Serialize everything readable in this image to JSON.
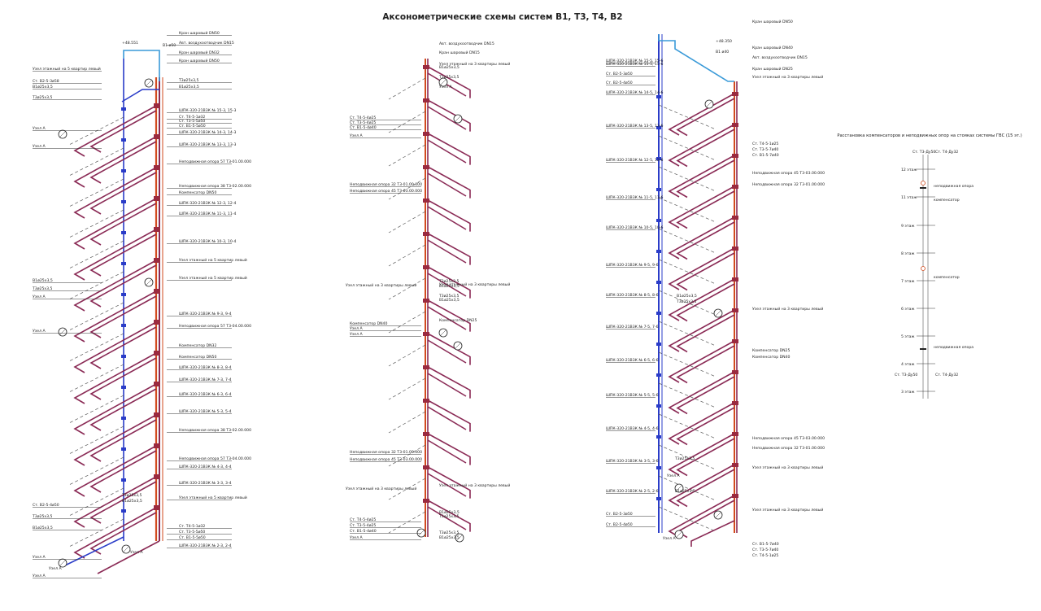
{
  "title": "Аксонометрические схемы систем В1, Т3, Т4, В2",
  "diagram1": {
    "level_mark": "+48.551",
    "labels": [
      "Кран шаровый DN50",
      "Авт. воздухоотводчик DN15",
      "Кран шаровый DN32",
      "В1 ø50",
      "Кран шаровый DN50",
      "Узел этажный на 5 квартир левый",
      "Ст. В2-5-3ø58",
      "В1ø25х3,5",
      "Т3ø25х3,5",
      "Т3ø25х3,5",
      "В1ø25х3,5",
      "Узел А",
      "Узел А",
      "ШПК-320-21В3К № 15-3, 15-3",
      "Ст. Т4-5-1ø32",
      "Ст. Т3-5-5ø50",
      "Ст. В1-5-5ø50",
      "ШПК-320-21В3К № 14-3, 14-3",
      "ШПК-320-21В3К № 13-3, 13-3",
      "Неподвижная опора 57 Т3-01.00.000",
      "Неподвижная опора 38 Т3-02.00.000",
      "Компенсатор DN50",
      "ШПК-320-21В3К № 12-3, 12-4",
      "ШПК-320-21В3К № 11-3, 11-4",
      "ШПК-320-21В3К № 10-3, 10-4",
      "Узел этажный на 5 квартир левый",
      "В1ø25х3,5",
      "Т3ø25х3,5",
      "Т3ø25х3,5",
      "В1ø25х3,5",
      "Узел А",
      "ШПК-320-21В3К № 9-3, 9-4",
      "Неподвижная опора 57 Т3-04.00.000",
      "Компенсатор DN32",
      "Компенсатор DN50",
      "ШПК-320-21В3К № 8-3, 8-4",
      "ШПК-320-21В3К № 7-3, 7-4",
      "ШПК-320-21В3К № 6-3, 6-4",
      "ШПК-320-21В3К № 5-3, 5-4",
      "Неподвижная опора 38 Т3-02.00.000",
      "Неподвижная опора 57 Т3-04.00.000",
      "ШПК-320-21В3К № 4-3, 4-4",
      "ШПК-320-21В3К № 3-3, 3-4",
      "Узел этажный на 5 квартир левый",
      "Ст. В2-5-4ø50",
      "Т3ø25х3,5",
      "В1ø25х3,5",
      "Т3ø25х3,5",
      "В1ø25х3,5",
      "Ст. Т4-5-1ø32",
      "Ст. Т3-5-5ø50",
      "Ст. В1-5-5ø50",
      "ШПК-320-21В3К № 2-3, 2-4",
      "Узел А",
      "Узел А"
    ]
  },
  "diagram2": {
    "labels": [
      "Авт. воздухоотводчик DN15",
      "Кран шаровый DN15",
      "Узел этажный на 3 квартиры левый",
      "В1ø25х3,5",
      "Т3ø25х3,5",
      "Узел А",
      "Ст. Т3-5-4ø25",
      "Ст. Т4-5-4ø25",
      "Ст. В1-5-4ø40",
      "Узел А",
      "Неподвижная опора 32 Т3-01.00.000",
      "Неподвижная опора 45 Т3-03.00.000",
      "Узел этажный на 3 квартиры левый",
      "Т3ø25х3,5",
      "В1ø25х3,5",
      "Т3ø25х3,5",
      "В1ø25х3,5",
      "Компенсатор DN25",
      "Компенсатор DN40",
      "Узел А",
      "Узел А",
      "Неподвижная опора 32 Т3-01.00.000",
      "Неподвижная опора 45 Т3-03.00.000",
      "Узел этажный на 3 квартиры левый",
      "Ст. Т4-5-4ø25",
      "Ст. Т3-5-4ø25",
      "Ст. В1-5-4ø40",
      "В1ø25х3,5",
      "Т3ø25х3,5",
      "Т3ø25х3,5",
      "В1ø25х3,5",
      "Узел А",
      "Узел А"
    ]
  },
  "diagram3": {
    "level_mark": "+48.350",
    "labels": [
      "Кран шаровый DN50",
      "Кран шаровый DN40",
      "Авт. воздухоотводчик DN15",
      "В1 ø40",
      "Кран шаровый DN25",
      "Узел этажный на 3 квартиры левый",
      "ШПК-320-21В3К № 15-5, 15-6",
      "В1ø25х3,5",
      "Т3ø25х3,5",
      "Ст. В2-5-3ø50",
      "Ст. В2-5-4ø50",
      "ШПК-320-21В3К № 14-5, 14-6",
      "Узел А",
      "ШПК-320-21В3К № 13-5, 13-6",
      "Ст. Т4-5-1ø25",
      "Ст. Т3-5-7ø40",
      "Ст. В1-5-7ø40",
      "ШПК-320-21В3К № 12-5, 12-6",
      "Неподвижная опора 45 Т3-03.00.000",
      "Неподвижная опора 32 Т3-01.00.000",
      "ШПК-320-21В3К № 11-5, 11-6",
      "ШПК-320-21В3К № 10-5, 10-6",
      "ШПК-320-21В3К № 9-5, 9-6",
      "ШПК-320-21В3К № 8-5, 8-6",
      "Т3ø25х3,5",
      "В1ø25х3,5",
      "Узел этажный на 3 квартиры левый",
      "Узел А",
      "ШПК-320-21В3К № 7-5, 7-6",
      "Компенсатор DN25",
      "Компенсатор DN40",
      "ШПК-320-21В3К № 6-5, 6-6",
      "ШПК-320-21В3К № 5-5, 5-6",
      "ШПК-320-21В3К № 4-5, 4-6",
      "Неподвижная опора 45 Т3-03.00.000",
      "Неподвижная опора 32 Т3-01.00.000",
      "ШПК-320-21В3К № 3-5, 3-6",
      "Узел этажный на 3 квартиры левый",
      "Т3ø25х3,5",
      "В1ø25х3,5",
      "Т3ø25х3,5",
      "В1ø25х3,5",
      "Узел А",
      "ШПК-320-21В3К № 2-5, 2-6",
      "Ст. В2-5-3ø50",
      "Ст. В2-5-4ø50",
      "Узел этажный на 3 квартиры левый",
      "Узел А",
      "Ст. В1-5-7ø40",
      "Ст. Т3-5-7ø40",
      "Ст. Т4-5-1ø25"
    ]
  },
  "legend_panel": {
    "title": "Расстановка компенсаторов и неподвижных опор на стояках системы ГВС (15 эт.)",
    "top_left": "Ст. Т3-Дy50",
    "top_right": "Ст. Т4-Дy32",
    "bottom_left": "Ст. Т3-Дy50",
    "bottom_right": "Ст. Т4-Дy32",
    "floors": [
      "12 этаж",
      "11 этаж",
      "9 этаж",
      "8 этаж",
      "7 этаж",
      "6 этаж",
      "5 этаж",
      "4 этаж",
      "3 этаж"
    ],
    "notes": [
      "неподвижная опора",
      "компенсатор",
      "компенсатор",
      "неподвижная опора"
    ]
  },
  "colors": {
    "cold_water": "#2a3cc8",
    "cold_water_top": "#3a9ad8",
    "hot_water": "#d24a1e",
    "branch": "#8a2a55"
  }
}
